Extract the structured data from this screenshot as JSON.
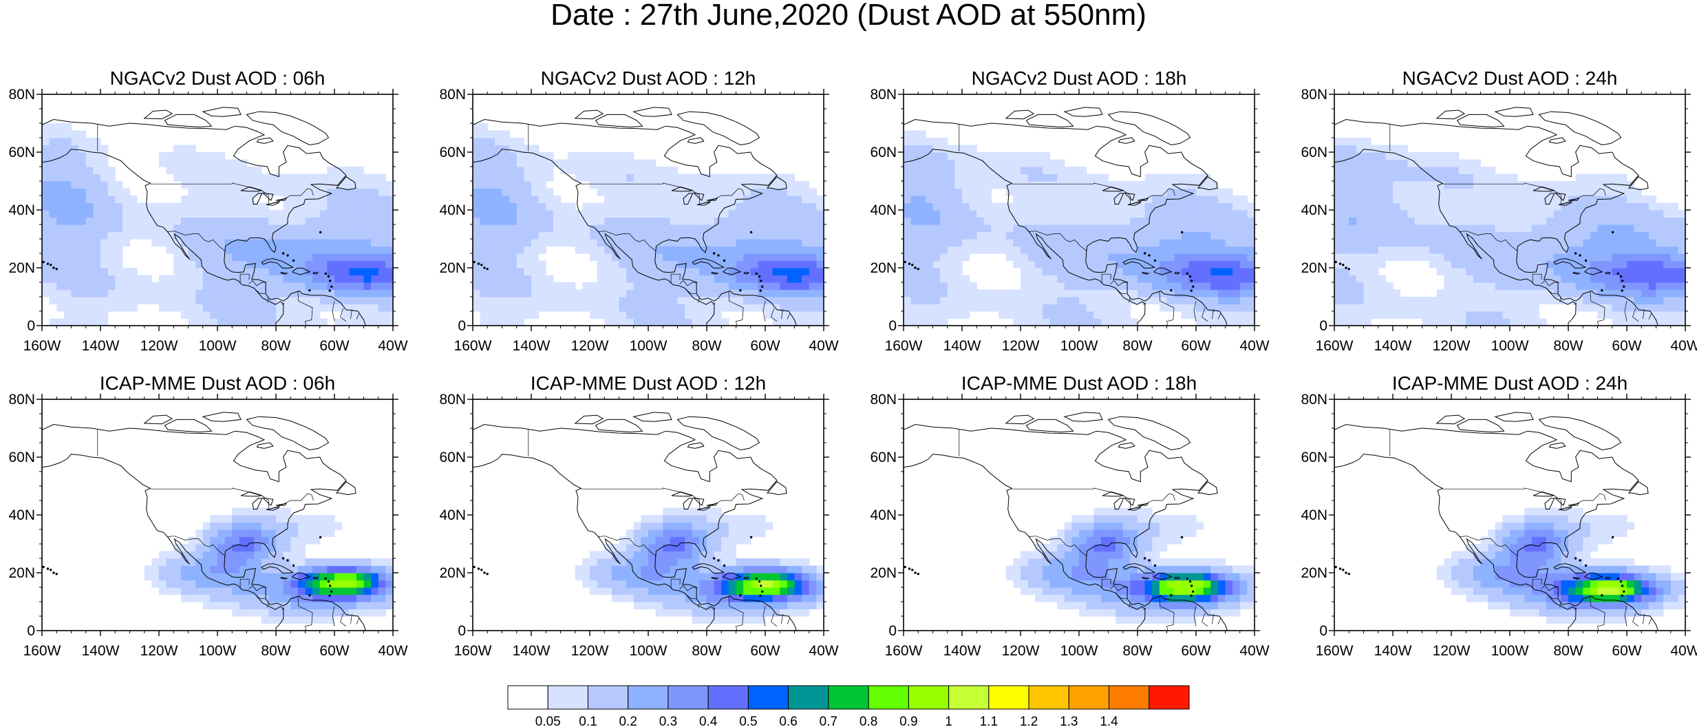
{
  "figure": {
    "title": "Date : 27th June,2020 (Dust AOD at 550nm)",
    "panels": [
      {
        "title": "NGACv2 Dust AOD : 06h",
        "model": "NGACv2",
        "lead": "06h"
      },
      {
        "title": "NGACv2 Dust AOD : 12h",
        "model": "NGACv2",
        "lead": "12h"
      },
      {
        "title": "NGACv2 Dust AOD : 18h",
        "model": "NGACv2",
        "lead": "18h"
      },
      {
        "title": "NGACv2 Dust AOD : 24h",
        "model": "NGACv2",
        "lead": "24h"
      },
      {
        "title": "ICAP-MME Dust AOD : 06h",
        "model": "ICAP-MME",
        "lead": "06h"
      },
      {
        "title": "ICAP-MME Dust AOD : 12h",
        "model": "ICAP-MME",
        "lead": "12h"
      },
      {
        "title": "ICAP-MME Dust AOD : 18h",
        "model": "ICAP-MME",
        "lead": "18h"
      },
      {
        "title": "ICAP-MME Dust AOD : 24h",
        "model": "ICAP-MME",
        "lead": "24h"
      }
    ],
    "lon_range": [
      -160,
      -40
    ],
    "lat_range": [
      0,
      80
    ],
    "lon_ticks": [
      "160W",
      "140W",
      "120W",
      "100W",
      "80W",
      "60W",
      "40W"
    ],
    "lat_ticks": [
      "0",
      "20N",
      "40N",
      "60N",
      "80N"
    ],
    "colorbar": {
      "labels": [
        "0.05",
        "0.1",
        "0.2",
        "0.3",
        "0.4",
        "0.5",
        "0.6",
        "0.7",
        "0.8",
        "0.9",
        "1",
        "1.1",
        "1.2",
        "1.3",
        "1.4"
      ],
      "colors": [
        "#ffffff",
        "#d6e2ff",
        "#b5c9ff",
        "#8eb2ff",
        "#7f96ff",
        "#6370ff",
        "#0063ff",
        "#009696",
        "#00c633",
        "#63ff00",
        "#96ff00",
        "#c6ff33",
        "#ffff00",
        "#ffc600",
        "#ffa000",
        "#ff7c00",
        "#ff1900"
      ]
    }
  }
}
